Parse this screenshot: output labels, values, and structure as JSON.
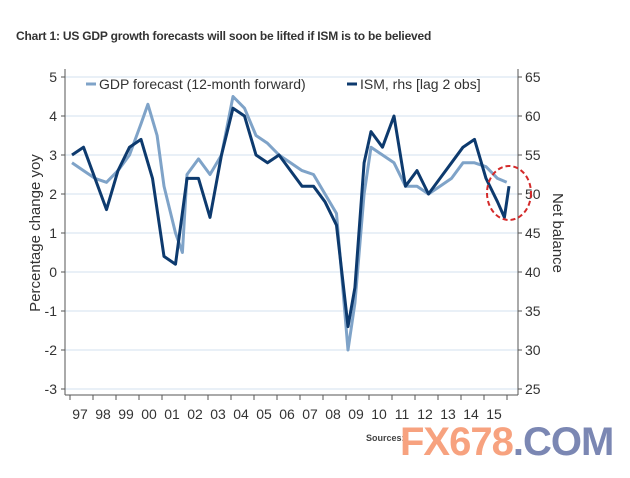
{
  "chart_data": {
    "type": "line",
    "title": "Chart 1: US GDP growth forecasts will soon be lifted if ISM is to be believed",
    "ylabel": "Percentage change yoy",
    "y2label": "Net balance",
    "ylim": [
      -3,
      5
    ],
    "y2lim": [
      25,
      65
    ],
    "yticks": [
      "5",
      "4",
      "3",
      "2",
      "1",
      "0",
      "-1",
      "-2",
      "-3"
    ],
    "y2ticks": [
      "65",
      "60",
      "55",
      "50",
      "45",
      "40",
      "35",
      "30",
      "25"
    ],
    "xticks": [
      "97",
      "98",
      "99",
      "00",
      "01",
      "02",
      "03",
      "04",
      "05",
      "06",
      "07",
      "08",
      "09",
      "10",
      "11",
      "12",
      "13",
      "14",
      "15"
    ],
    "grid": true,
    "legend_placement": "top",
    "series": [
      {
        "name": "GDP forecast (12-month forward)",
        "axis": "left",
        "color": "#7fa3c8",
        "x": [
          1997,
          1997.5,
          1998,
          1998.5,
          1999,
          1999.5,
          2000,
          2000.3,
          2000.7,
          2001,
          2001.5,
          2001.8,
          2002,
          2002.5,
          2003,
          2003.5,
          2004,
          2004.5,
          2005,
          2005.5,
          2006,
          2006.5,
          2007,
          2007.5,
          2008,
          2008.5,
          2009,
          2009.3,
          2009.7,
          2010,
          2010.5,
          2011,
          2011.5,
          2012,
          2012.5,
          2013,
          2013.5,
          2014,
          2014.5,
          2015,
          2015.5,
          2015.9
        ],
        "values": [
          2.8,
          2.6,
          2.4,
          2.3,
          2.6,
          3.0,
          3.8,
          4.3,
          3.5,
          2.2,
          1.0,
          0.5,
          2.5,
          2.9,
          2.5,
          3.0,
          4.5,
          4.2,
          3.5,
          3.3,
          3.0,
          2.8,
          2.6,
          2.5,
          2.0,
          1.5,
          -2.0,
          -0.8,
          2.0,
          3.2,
          3.0,
          2.8,
          2.2,
          2.2,
          2.0,
          2.2,
          2.4,
          2.8,
          2.8,
          2.7,
          2.4,
          2.3
        ]
      },
      {
        "name": "ISM, rhs [lag 2 obs]",
        "axis": "right",
        "color": "#0d3a6e",
        "x": [
          1997,
          1997.5,
          1998,
          1998.5,
          1999,
          1999.5,
          2000,
          2000.5,
          2001,
          2001.5,
          2002,
          2002.5,
          2003,
          2003.5,
          2004,
          2004.5,
          2005,
          2005.5,
          2006,
          2006.5,
          2007,
          2007.5,
          2008,
          2008.5,
          2009,
          2009.3,
          2009.7,
          2010,
          2010.5,
          2011,
          2011.5,
          2012,
          2012.5,
          2013,
          2013.5,
          2014,
          2014.5,
          2015,
          2015.5,
          2015.8,
          2016
        ],
        "values": [
          55,
          56,
          52,
          48,
          53,
          56,
          57,
          52,
          42,
          41,
          52,
          52,
          47,
          55,
          61,
          60,
          55,
          54,
          55,
          53,
          51,
          51,
          49,
          46,
          33,
          38,
          54,
          58,
          56,
          60,
          51,
          53,
          50,
          52,
          54,
          56,
          57,
          52,
          49,
          47,
          51
        ]
      }
    ],
    "annotations": [
      {
        "type": "dashed-circle",
        "color": "#d42a2a",
        "around": "ISM 2015 dip"
      }
    ]
  },
  "source_label": "Sources:",
  "watermark": {
    "part1": "FX678",
    "part2": ".COM"
  }
}
